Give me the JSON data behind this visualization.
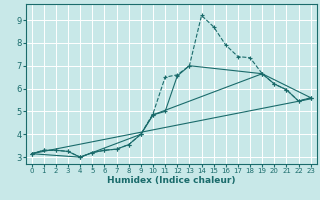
{
  "title": "",
  "xlabel": "Humidex (Indice chaleur)",
  "background_color": "#c8e8e8",
  "line_color": "#1a6b6b",
  "grid_color": "#ffffff",
  "xlim": [
    -0.5,
    23.5
  ],
  "ylim": [
    2.7,
    9.7
  ],
  "xticks": [
    0,
    1,
    2,
    3,
    4,
    5,
    6,
    7,
    8,
    9,
    10,
    11,
    12,
    13,
    14,
    15,
    16,
    17,
    18,
    19,
    20,
    21,
    22,
    23
  ],
  "yticks": [
    3,
    4,
    5,
    6,
    7,
    8,
    9
  ],
  "lines": [
    {
      "x": [
        0,
        1,
        2,
        3,
        4,
        5,
        6,
        7,
        8,
        9,
        10,
        11,
        12,
        13,
        14,
        15,
        16,
        17,
        18,
        19,
        20,
        21,
        22,
        23
      ],
      "y": [
        3.15,
        3.3,
        3.3,
        3.25,
        3.0,
        3.2,
        3.3,
        3.35,
        3.55,
        4.0,
        4.9,
        6.5,
        6.6,
        7.0,
        9.2,
        8.7,
        7.9,
        7.4,
        7.35,
        6.65,
        6.2,
        5.95,
        5.45,
        5.6
      ],
      "style": "dashed_marker"
    },
    {
      "x": [
        0,
        1,
        2,
        3,
        4,
        5,
        6,
        7,
        8,
        9,
        10,
        11,
        12,
        13,
        19,
        20,
        21,
        22,
        23
      ],
      "y": [
        3.15,
        3.3,
        3.3,
        3.25,
        3.0,
        3.2,
        3.3,
        3.35,
        3.55,
        4.0,
        4.85,
        5.0,
        6.55,
        7.0,
        6.65,
        6.2,
        5.95,
        5.45,
        5.6
      ],
      "style": "solid_marker"
    },
    {
      "x": [
        0,
        4,
        9,
        10,
        19,
        23
      ],
      "y": [
        3.15,
        3.0,
        4.0,
        4.85,
        6.65,
        5.6
      ],
      "style": "solid_marker"
    },
    {
      "x": [
        0,
        23
      ],
      "y": [
        3.15,
        5.55
      ],
      "style": "solid"
    }
  ]
}
